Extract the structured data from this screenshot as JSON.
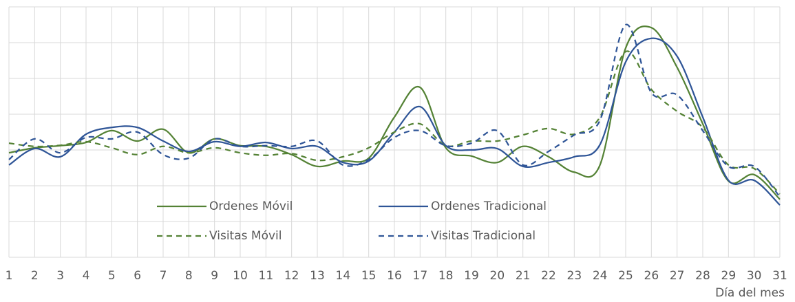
{
  "chart_data": {
    "type": "line",
    "x_label": "Día del mes",
    "x": [
      1,
      2,
      3,
      4,
      5,
      6,
      7,
      8,
      9,
      10,
      11,
      12,
      13,
      14,
      15,
      16,
      17,
      18,
      19,
      20,
      21,
      22,
      23,
      24,
      25,
      26,
      27,
      28,
      29,
      30,
      31
    ],
    "xlim": [
      1,
      31
    ],
    "xticks": [
      1,
      2,
      3,
      4,
      5,
      6,
      7,
      8,
      9,
      10,
      11,
      12,
      13,
      14,
      15,
      16,
      17,
      18,
      19,
      20,
      21,
      22,
      23,
      24,
      25,
      26,
      27,
      28,
      29,
      30,
      31
    ],
    "ylim": [
      0,
      7
    ],
    "yticks": [
      0,
      1,
      2,
      3,
      4,
      5,
      6,
      7
    ],
    "grid": true,
    "legend": "lower center",
    "series": [
      {
        "name": "Ordenes Móvil",
        "color": "#548235",
        "dash": false,
        "values": [
          2.92,
          3.06,
          3.12,
          3.21,
          3.54,
          3.25,
          3.58,
          2.92,
          3.31,
          3.12,
          3.1,
          2.87,
          2.54,
          2.69,
          2.77,
          3.92,
          4.75,
          3.06,
          2.83,
          2.65,
          3.1,
          2.81,
          2.38,
          2.58,
          5.85,
          6.42,
          5.31,
          3.73,
          2.13,
          2.31,
          1.62
        ]
      },
      {
        "name": "Ordenes Tradicional",
        "color": "#2f5597",
        "dash": false,
        "values": [
          2.58,
          3.04,
          2.81,
          3.44,
          3.63,
          3.63,
          3.25,
          2.96,
          3.23,
          3.1,
          3.21,
          3.04,
          3.1,
          2.65,
          2.69,
          3.5,
          4.21,
          3.12,
          3.0,
          3.04,
          2.54,
          2.65,
          2.81,
          3.15,
          5.46,
          6.12,
          5.62,
          3.92,
          2.15,
          2.15,
          1.46
        ]
      },
      {
        "name": "Visitas Móvil",
        "color": "#548235",
        "dash": true,
        "values": [
          3.19,
          3.1,
          3.13,
          3.23,
          3.06,
          2.87,
          3.1,
          2.92,
          3.06,
          2.92,
          2.85,
          2.9,
          2.71,
          2.81,
          3.06,
          3.5,
          3.73,
          3.12,
          3.25,
          3.25,
          3.42,
          3.6,
          3.44,
          3.92,
          5.75,
          4.69,
          4.08,
          3.63,
          2.58,
          2.48,
          1.77
        ]
      },
      {
        "name": "Visitas Tradicional",
        "color": "#2f5597",
        "dash": true,
        "values": [
          2.73,
          3.31,
          2.92,
          3.35,
          3.31,
          3.5,
          2.87,
          2.77,
          3.31,
          3.1,
          3.12,
          3.1,
          3.25,
          2.58,
          2.73,
          3.35,
          3.54,
          3.12,
          3.19,
          3.54,
          2.58,
          2.96,
          3.42,
          3.83,
          6.5,
          4.6,
          4.54,
          3.54,
          2.54,
          2.54,
          1.69
        ]
      }
    ]
  }
}
